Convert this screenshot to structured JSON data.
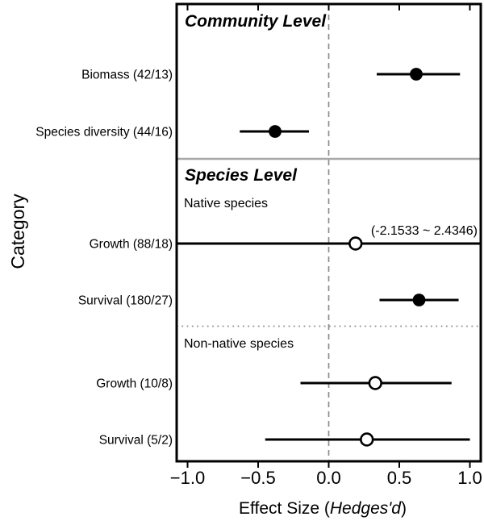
{
  "figure": {
    "background": "#ffffff",
    "axis_color": "#000000",
    "text_color": "#000000"
  },
  "chart_data": {
    "type": "scatter",
    "subtype": "forest-plot",
    "title": "",
    "ylabel": "Category",
    "xlabel_prefix": "Effect Size (",
    "xlabel_italic": "Hedges'd",
    "xlabel_suffix": ")",
    "xlim": [
      -1.08,
      1.08
    ],
    "x_ticks": [
      -1.0,
      -0.5,
      0.0,
      0.5,
      1.0
    ],
    "x_tick_labels": [
      "−1.0",
      "−0.5",
      "0.0",
      "0.5",
      "1.0"
    ],
    "grid": false,
    "zero_reference_line": {
      "x": 0.0,
      "style": "dashed",
      "color": "#8c8c8c"
    },
    "dividers": [
      {
        "between": "Community Level / Species Level",
        "style": "solid",
        "color": "#a8a8a8"
      },
      {
        "between": "Native species / Non-native species",
        "style": "dotted",
        "color": "#8f8f8f"
      }
    ],
    "sections": [
      {
        "title": "Community Level",
        "rows": [
          {
            "label": "Biomass (42/13)",
            "mean": 0.62,
            "ci": [
              0.34,
              0.93
            ],
            "marker": "filled"
          },
          {
            "label": "Species diversity (44/16)",
            "mean": -0.38,
            "ci": [
              -0.63,
              -0.14
            ],
            "marker": "filled"
          }
        ]
      },
      {
        "title": "Species Level",
        "subsections": [
          {
            "title": "Native species",
            "rows": [
              {
                "label": "Growth (88/18)",
                "mean": 0.19,
                "ci": [
                  -2.1533,
                  2.4346
                ],
                "truncated": true,
                "annotation": "(-2.1533 ~ 2.4346)",
                "marker": "open"
              },
              {
                "label": "Survival (180/27)",
                "mean": 0.64,
                "ci": [
                  0.36,
                  0.92
                ],
                "marker": "filled"
              }
            ]
          },
          {
            "title": "Non-native species",
            "rows": [
              {
                "label": "Growth (10/8)",
                "mean": 0.33,
                "ci": [
                  -0.2,
                  0.87
                ],
                "marker": "open"
              },
              {
                "label": "Survival (5/2)",
                "mean": 0.27,
                "ci": [
                  -0.45,
                  1.0
                ],
                "marker": "open"
              }
            ]
          }
        ]
      }
    ]
  }
}
